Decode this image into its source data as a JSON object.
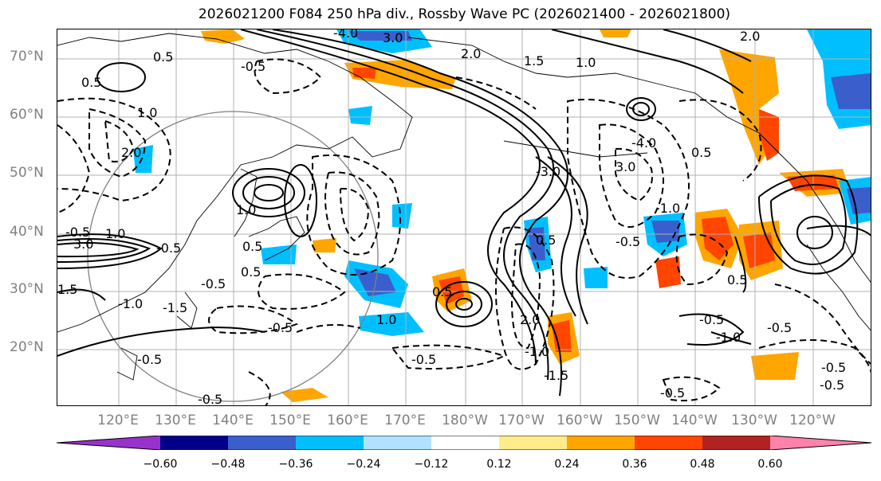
{
  "title": "2026021200 F084 250 hPa div., Rossby Wave PC (2026021400 - 2026021800)",
  "lat_labels": [
    "70°N",
    "60°N",
    "50°N",
    "40°N",
    "30°N",
    "20°N"
  ],
  "lon_labels": [
    "120°E",
    "130°E",
    "140°E",
    "150°E",
    "160°E",
    "170°E",
    "180°W",
    "170°W",
    "160°W",
    "150°W",
    "140°W",
    "130°W",
    "120°W"
  ],
  "colorbar": {
    "ticks": [
      "−0.60",
      "−0.48",
      "−0.36",
      "−0.24",
      "−0.12",
      "0.12",
      "0.24",
      "0.36",
      "0.48",
      "0.60"
    ],
    "colors": [
      "#9932cc",
      "#00008b",
      "#3a5fcd",
      "#00bfff",
      "#b0e2ff",
      "#ffffff",
      "#ffec8b",
      "#ffa500",
      "#ff4500",
      "#b22222",
      "#ff82ab"
    ]
  },
  "contour_labels": [
    {
      "text": "-4.0"
    },
    {
      "text": "3.0"
    },
    {
      "text": "2.0"
    },
    {
      "text": "1.5"
    },
    {
      "text": "1.0"
    },
    {
      "text": "2.0"
    },
    {
      "text": "-0.5"
    },
    {
      "text": "0.5"
    },
    {
      "text": "0.5"
    },
    {
      "text": "1.0"
    },
    {
      "text": "2.0"
    },
    {
      "text": "-4.0"
    },
    {
      "text": "3.0"
    },
    {
      "text": "0.5"
    },
    {
      "text": "-3.0"
    },
    {
      "text": "-1.0"
    },
    {
      "text": "-0.5"
    },
    {
      "text": "0.5"
    },
    {
      "text": "1.0"
    },
    {
      "text": "-0.5"
    },
    {
      "text": "0.5"
    },
    {
      "text": "-1.0"
    },
    {
      "text": "-0.5"
    },
    {
      "text": "1.0"
    },
    {
      "text": "-1.5"
    },
    {
      "text": "-0.5"
    },
    {
      "text": "-0.5"
    },
    {
      "text": "-0.5"
    },
    {
      "text": "2.0"
    },
    {
      "text": "-1.0"
    },
    {
      "text": "-1.5"
    },
    {
      "text": "-0.5"
    },
    {
      "text": "-0.5"
    },
    {
      "text": "1.0"
    },
    {
      "text": "0.5"
    },
    {
      "text": "-0.5"
    },
    {
      "text": "-0.5"
    },
    {
      "text": "3.0"
    },
    {
      "text": "0.5"
    },
    {
      "text": "0.5"
    },
    {
      "text": "-0.5"
    },
    {
      "text": "-1.0"
    },
    {
      "text": "1.5"
    },
    {
      "text": "-0.5"
    },
    {
      "text": "-0.5"
    }
  ]
}
